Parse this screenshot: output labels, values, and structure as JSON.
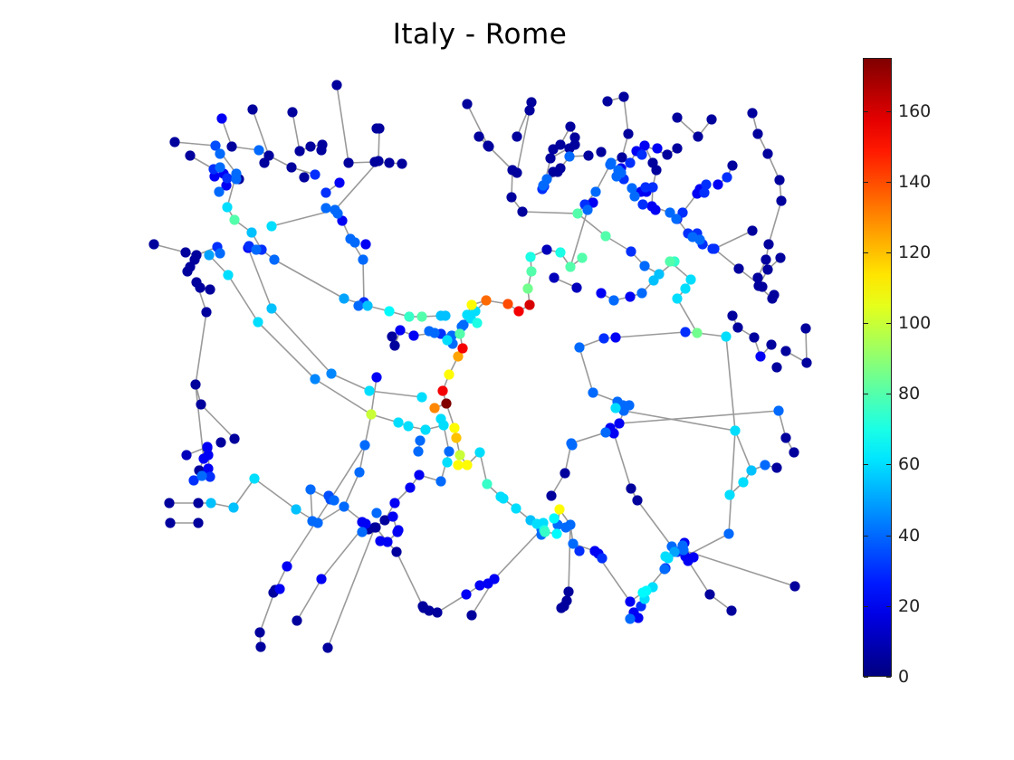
{
  "chart_data": {
    "type": "scatter",
    "title": "Italy - Rome",
    "xlabel": "",
    "ylabel": "",
    "axes_visible": false,
    "grid": false,
    "legend": "none",
    "colormap": "jet",
    "edge_color": "#9a9a9a",
    "colorbar": {
      "placement": "right",
      "range": [
        0,
        175
      ],
      "ticks": [
        0,
        20,
        40,
        60,
        80,
        100,
        120,
        140,
        160
      ],
      "tick_labels": [
        "0",
        "20",
        "40",
        "60",
        "80",
        "100",
        "120",
        "140",
        "160"
      ]
    }
  }
}
